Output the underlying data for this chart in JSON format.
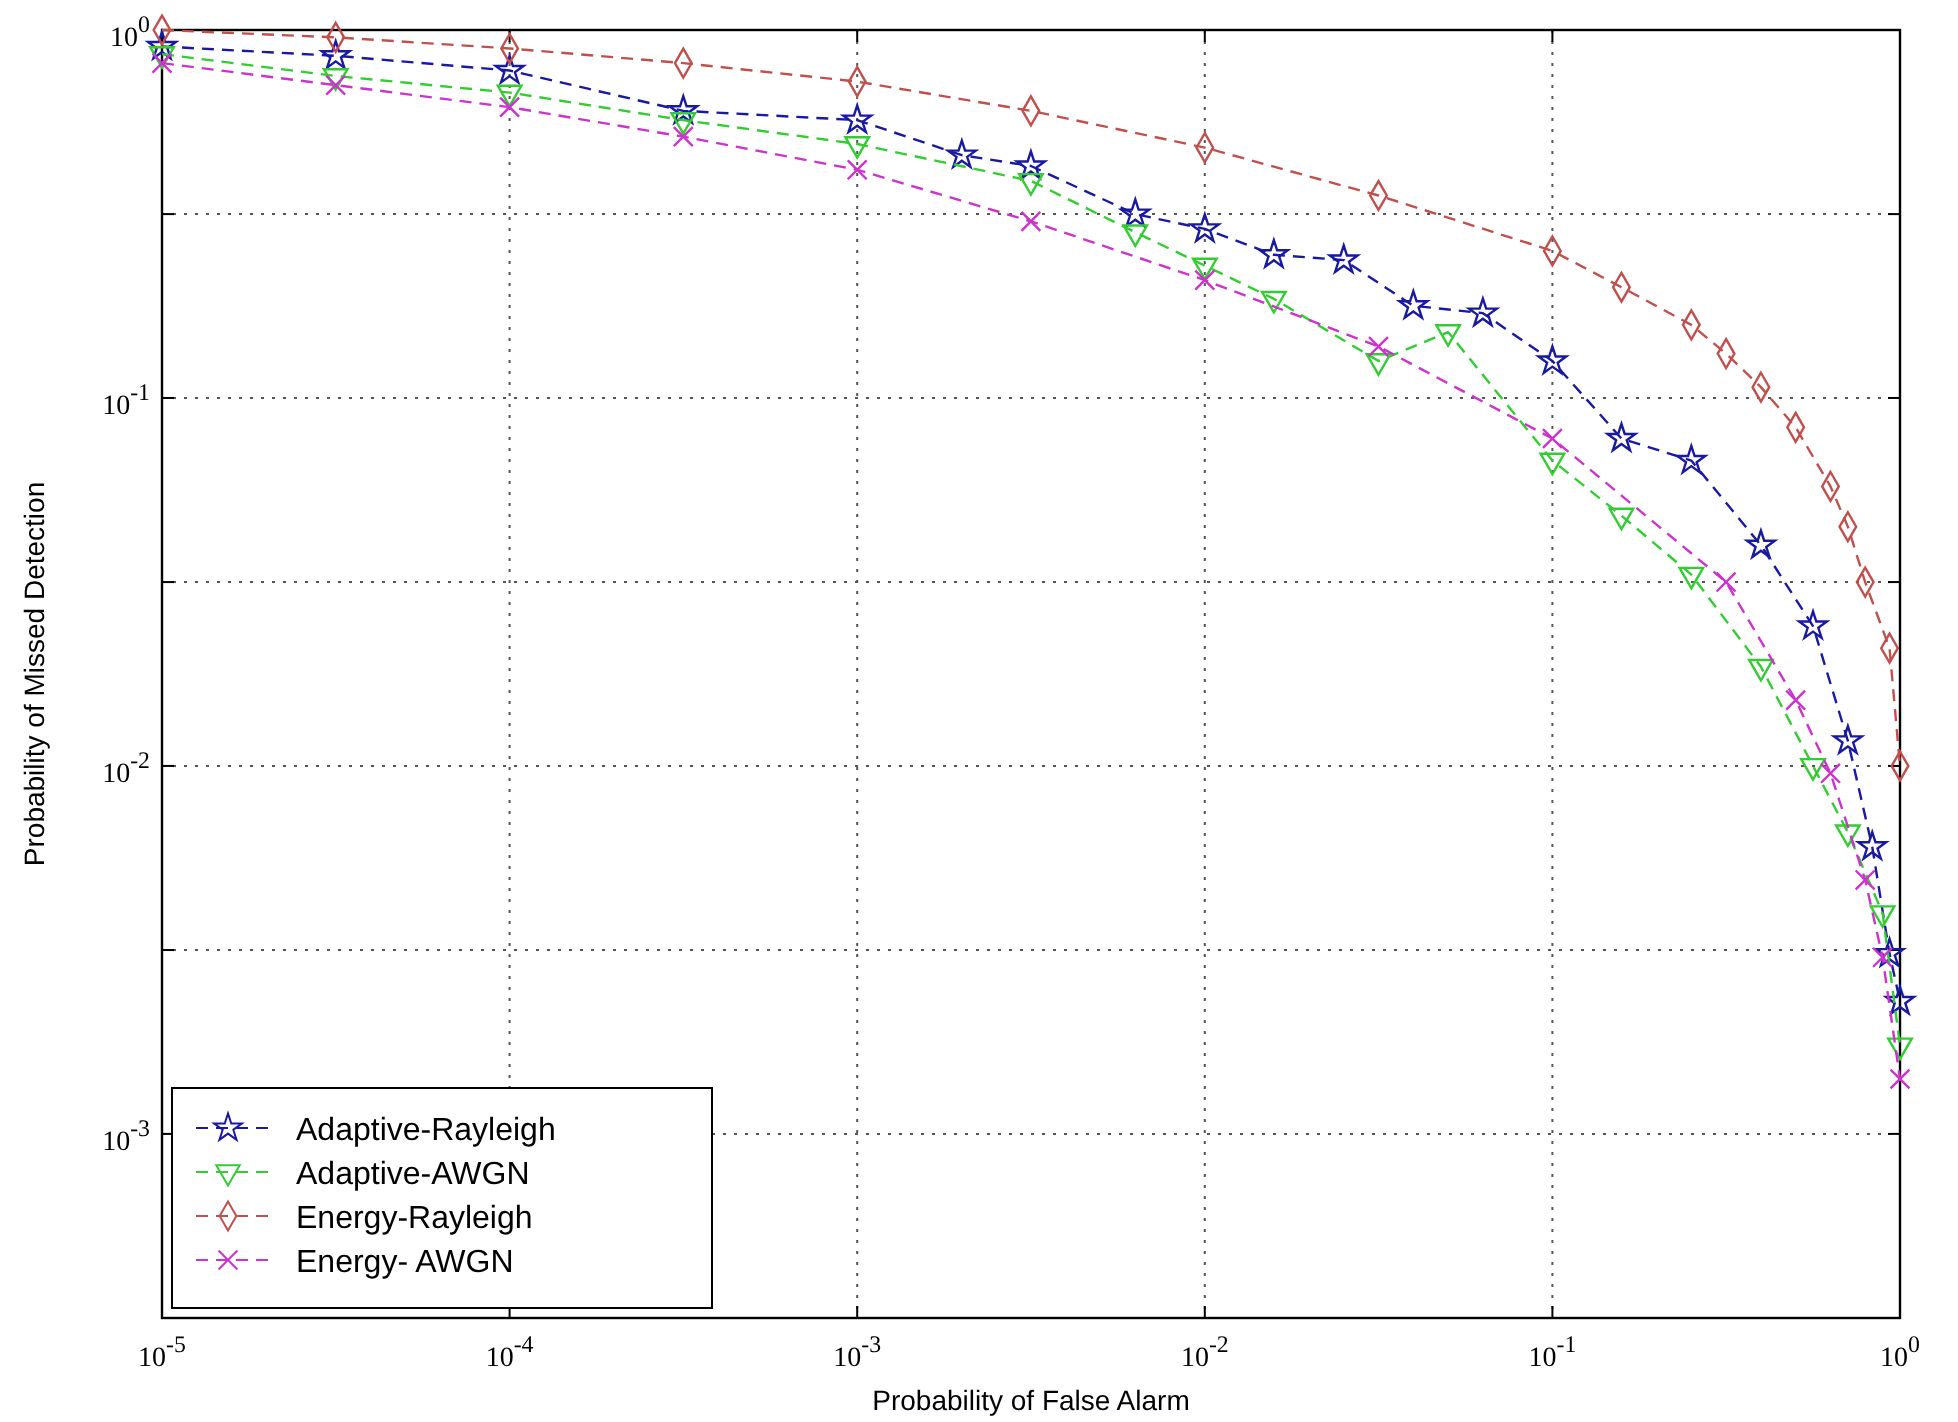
{
  "chart_data": {
    "type": "line",
    "xlabel": "Probability of False Alarm",
    "ylabel": "Probability of Missed Detection",
    "log": "xy",
    "grid": true,
    "legend": "bottom left",
    "line_style": "dashed",
    "xlim": [
      1e-05,
      1
    ],
    "ylim": [
      0.000316,
      1
    ],
    "xticks": [
      {
        "value": 1e-05,
        "label": "10$^{-5}$"
      },
      {
        "value": 0.0001,
        "label": "10$^{-4}$"
      },
      {
        "value": 0.001,
        "label": "10$^{-3}$"
      },
      {
        "value": 0.01,
        "label": "10$^{-2}$"
      },
      {
        "value": 0.1,
        "label": "10$^{-1}$"
      },
      {
        "value": 1,
        "label": "10$^{0}$"
      }
    ],
    "yticks": [
      {
        "value": 1,
        "label": "10$^{0}$"
      },
      {
        "value": 0.316,
        "label": null
      },
      {
        "value": 0.1,
        "label": "10$^{-1}$"
      },
      {
        "value": 0.0316,
        "label": null
      },
      {
        "value": 0.01,
        "label": "10$^{-2}$"
      },
      {
        "value": 0.00316,
        "label": null
      },
      {
        "value": 0.001,
        "label": "10$^{-3}$"
      }
    ],
    "series": [
      {
        "name": "Adaptive-Rayleigh",
        "color": "#1a1aa0",
        "marker": "star",
        "x": [
          1e-05,
          3.16e-05,
          0.0001,
          0.000316,
          0.001,
          0.002,
          0.00316,
          0.00631,
          0.01,
          0.0158,
          0.0251,
          0.0398,
          0.0631,
          0.1,
          0.158,
          0.251,
          0.398,
          0.562,
          0.708,
          0.832,
          0.933,
          1
        ],
        "values": [
          0.902,
          0.851,
          0.776,
          0.603,
          0.569,
          0.457,
          0.427,
          0.316,
          0.288,
          0.245,
          0.237,
          0.178,
          0.17,
          0.126,
          0.0776,
          0.0676,
          0.0398,
          0.024,
          0.0117,
          0.00603,
          0.00309,
          0.00229
        ]
      },
      {
        "name": "Adaptive-AWGN",
        "color": "#33cc33",
        "marker": "triangle",
        "x": [
          1e-05,
          3.16e-05,
          0.0001,
          0.000316,
          0.001,
          0.00316,
          0.00631,
          0.01,
          0.0158,
          0.0316,
          0.0501,
          0.1,
          0.158,
          0.251,
          0.398,
          0.562,
          0.708,
          0.891,
          1
        ],
        "values": [
          0.86,
          0.75,
          0.676,
          0.569,
          0.49,
          0.389,
          0.282,
          0.229,
          0.186,
          0.126,
          0.151,
          0.0676,
          0.0479,
          0.0331,
          0.0186,
          0.01,
          0.0066,
          0.00398,
          0.00174
        ]
      },
      {
        "name": "Energy-Rayleigh",
        "color": "#c0504d",
        "marker": "diamond",
        "x": [
          1e-05,
          3.16e-05,
          0.0001,
          0.000316,
          0.001,
          0.00316,
          0.01,
          0.0316,
          0.1,
          0.158,
          0.251,
          0.316,
          0.398,
          0.501,
          0.631,
          0.708,
          0.794,
          0.933,
          1
        ],
        "values": [
          1,
          0.955,
          0.891,
          0.813,
          0.724,
          0.603,
          0.479,
          0.355,
          0.251,
          0.2,
          0.158,
          0.132,
          0.107,
          0.0832,
          0.0575,
          0.0447,
          0.0316,
          0.0209,
          0.01
        ]
      },
      {
        "name": "Energy- AWGN",
        "color": "#cc33cc",
        "marker": "cross",
        "x": [
          1e-05,
          3.16e-05,
          0.0001,
          0.000316,
          0.001,
          0.00316,
          0.01,
          0.0316,
          0.1,
          0.316,
          0.501,
          0.631,
          0.794,
          0.891,
          1
        ],
        "values": [
          0.813,
          0.708,
          0.617,
          0.513,
          0.417,
          0.302,
          0.209,
          0.138,
          0.0776,
          0.0316,
          0.0151,
          0.00955,
          0.0049,
          0.00302,
          0.00141
        ]
      }
    ]
  }
}
